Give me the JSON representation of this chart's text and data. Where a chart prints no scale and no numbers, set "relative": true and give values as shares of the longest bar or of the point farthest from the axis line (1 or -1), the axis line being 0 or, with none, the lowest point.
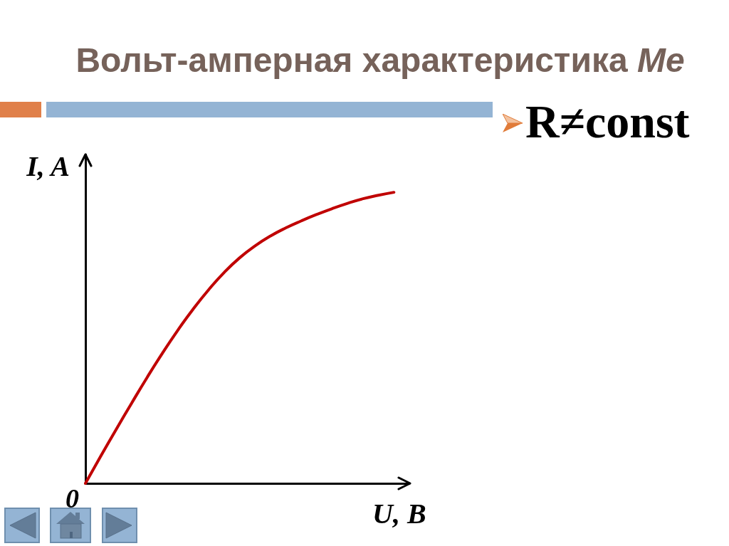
{
  "chart_data": {
    "type": "line",
    "title": "Вольт-амперная характеристика Ме",
    "xlabel": "U, B",
    "ylabel": "I, A",
    "annotations": [
      "0",
      "R≠const"
    ],
    "categories": [
      null,
      null,
      null,
      null,
      null,
      null,
      null,
      null,
      null,
      null,
      null,
      null,
      null,
      null,
      null,
      null,
      null,
      null,
      null,
      null,
      null,
      null
    ],
    "relative": true,
    "series": [
      {
        "color": "#c00000",
        "values": [
          0,
          0.094,
          0.186,
          0.276,
          0.364,
          0.448,
          0.527,
          0.6,
          0.666,
          0.725,
          0.775,
          0.816,
          0.85,
          0.878,
          0.902,
          0.924,
          0.944,
          0.962,
          0.978,
          0.99,
          1,
          null
        ]
      }
    ],
    "grid": false,
    "marker": "none",
    "line_style": "solid"
  }
}
